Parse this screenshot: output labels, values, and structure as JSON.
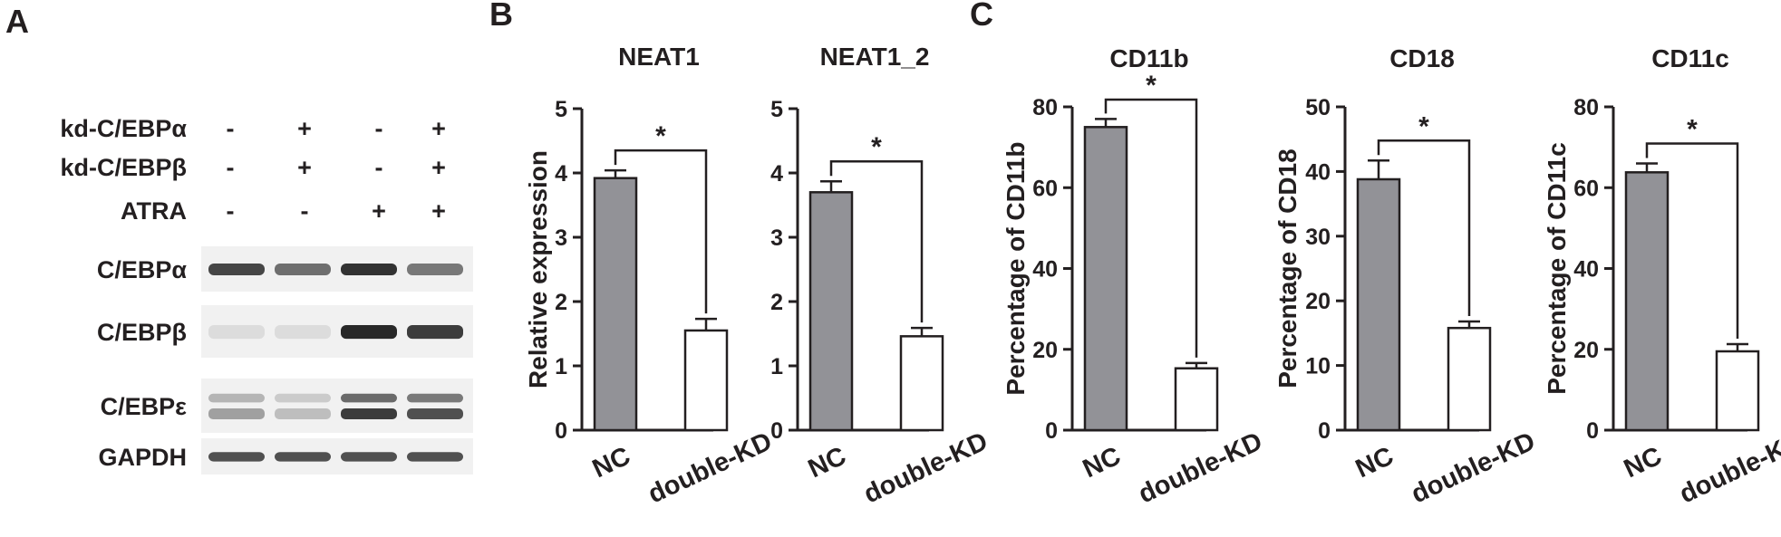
{
  "panels": {
    "A": "A",
    "B": "B",
    "C": "C"
  },
  "blot": {
    "condition_rows": [
      {
        "label": "kd-C/EBPα",
        "signs": [
          "-",
          "+",
          "-",
          "+"
        ]
      },
      {
        "label": "kd-C/EBPβ",
        "signs": [
          "-",
          "+",
          "-",
          "+"
        ]
      },
      {
        "label": "ATRA",
        "signs": [
          "-",
          "-",
          "+",
          "+"
        ]
      }
    ],
    "band_rows": [
      {
        "label": "C/EBPα",
        "intensity": [
          0.8,
          0.6,
          0.9,
          0.55
        ],
        "double": false
      },
      {
        "label": "C/EBPβ",
        "intensity": [
          0.05,
          0.05,
          0.95,
          0.85
        ],
        "double": false
      },
      {
        "label": "C/EBPε",
        "intensity": [
          0.35,
          0.2,
          0.85,
          0.75
        ],
        "double": true
      },
      {
        "label": "GAPDH",
        "intensity": [
          0.75,
          0.75,
          0.75,
          0.75
        ],
        "double": false
      }
    ]
  },
  "colors": {
    "nc_bar": "#929297",
    "kd_bar": "#ffffff",
    "ink": "#231f20"
  },
  "chart_data": [
    {
      "type": "bar",
      "panel": "B",
      "title": "NEAT1",
      "ylabel": "Relative expression",
      "categories": [
        "NC",
        "double-KD"
      ],
      "values": [
        3.92,
        1.55
      ],
      "errors": [
        0.12,
        0.18
      ],
      "ylim": [
        0,
        5
      ],
      "ticks": [
        "0",
        "1",
        "2",
        "3",
        "4",
        "5"
      ],
      "significance": "*"
    },
    {
      "type": "bar",
      "panel": "B",
      "title": "NEAT1_2",
      "ylabel": "",
      "categories": [
        "NC",
        "double-KD"
      ],
      "values": [
        3.7,
        1.46
      ],
      "errors": [
        0.17,
        0.13
      ],
      "ylim": [
        0,
        5
      ],
      "ticks": [
        "0",
        "1",
        "2",
        "3",
        "4",
        "5"
      ],
      "significance": "*"
    },
    {
      "type": "bar",
      "panel": "C",
      "title": "CD11b",
      "ylabel": "Percentage of CD11b",
      "categories": [
        "NC",
        "double-KD"
      ],
      "values": [
        75,
        15.3
      ],
      "errors": [
        2.0,
        1.3
      ],
      "ylim": [
        0,
        80
      ],
      "ticks": [
        "0",
        "20",
        "40",
        "60",
        "80"
      ],
      "significance": "*"
    },
    {
      "type": "bar",
      "panel": "C",
      "title": "CD18",
      "ylabel": "Percentage of CD18",
      "categories": [
        "NC",
        "double-KD"
      ],
      "values": [
        38.8,
        15.8
      ],
      "errors": [
        2.9,
        1.0
      ],
      "ylim": [
        0,
        50
      ],
      "ticks": [
        "0",
        "10",
        "20",
        "30",
        "40",
        "50"
      ],
      "significance": "*"
    },
    {
      "type": "bar",
      "panel": "C",
      "title": "CD11c",
      "ylabel": "Percentage of CD11c",
      "categories": [
        "NC",
        "double-KD"
      ],
      "values": [
        63.8,
        19.5
      ],
      "errors": [
        2.2,
        1.8
      ],
      "ylim": [
        0,
        80
      ],
      "ticks": [
        "0",
        "20",
        "40",
        "60",
        "80"
      ],
      "significance": "*"
    }
  ]
}
